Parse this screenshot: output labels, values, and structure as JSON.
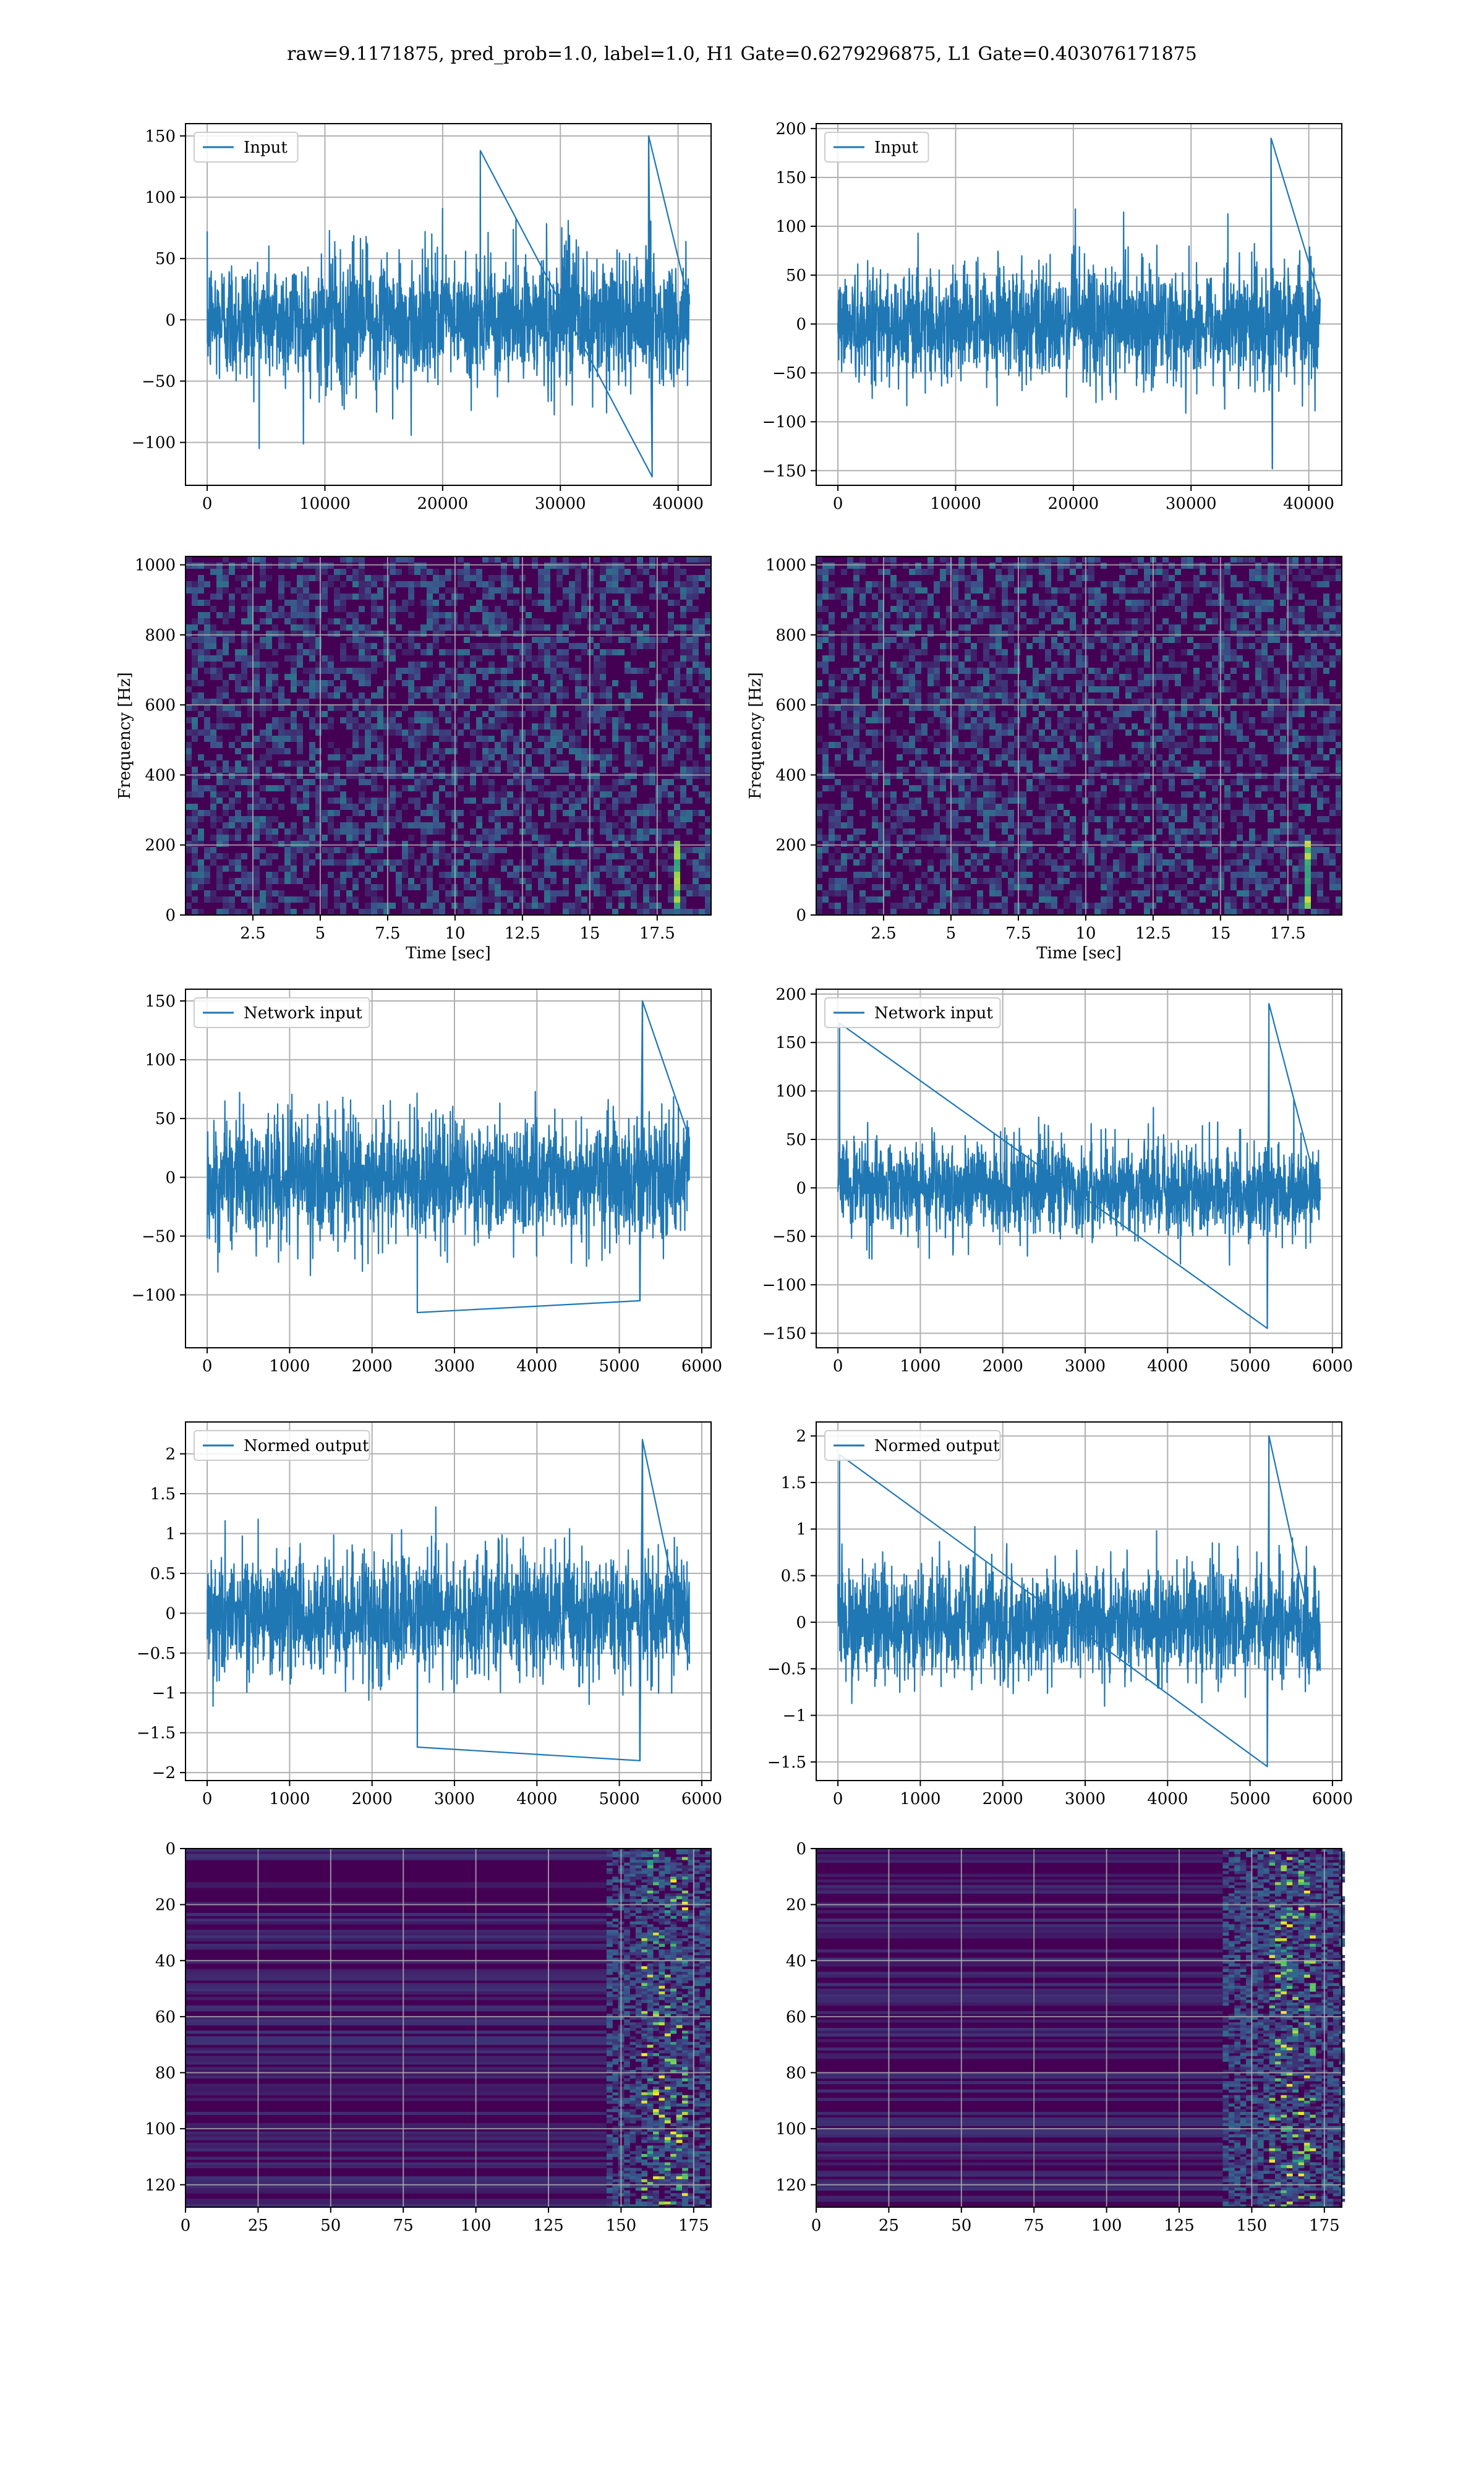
{
  "figure": {
    "title": "raw=9.1171875, pred_prob=1.0, label=1.0, H1 Gate=0.6279296875, L1 Gate=0.403076171875"
  },
  "colors": {
    "line": "#1f77b4",
    "heatmap_bg": "#440154",
    "heatmap_mid": "#3b528b",
    "heatmap_hi": "#21918c",
    "heatmap_peak": "#5ec962",
    "heatmap_max": "#fde725",
    "grid": "#b0b0b0"
  },
  "chart_data": [
    {
      "id": "h1-input",
      "type": "line",
      "legend": "Input",
      "legend_position": "upper-left",
      "x_range": [
        0,
        40960
      ],
      "y_range": [
        -100,
        150
      ],
      "ylim": [
        -135,
        160
      ],
      "xticks": [
        0,
        10000,
        20000,
        30000,
        40000
      ],
      "yticks": [
        -100,
        -50,
        0,
        50,
        100,
        150
      ],
      "noise_std": 26,
      "spikes": [
        {
          "x": 37500,
          "y": 150
        },
        {
          "x": 37800,
          "y": -128
        },
        {
          "x": 23200,
          "y": 138
        }
      ],
      "xlabel": "",
      "ylabel": "",
      "grid": true
    },
    {
      "id": "l1-input",
      "type": "line",
      "legend": "Input",
      "legend_position": "upper-left",
      "x_range": [
        0,
        40960
      ],
      "y_range": [
        -150,
        190
      ],
      "ylim": [
        -165,
        205
      ],
      "xticks": [
        0,
        10000,
        20000,
        30000,
        40000
      ],
      "yticks": [
        -150,
        -100,
        -50,
        0,
        50,
        100,
        150,
        200
      ],
      "noise_std": 30,
      "spikes": [
        {
          "x": 36800,
          "y": 190
        },
        {
          "x": 36900,
          "y": -148
        }
      ],
      "xlabel": "",
      "ylabel": "",
      "grid": true
    },
    {
      "id": "h1-spectrogram",
      "type": "heatmap",
      "xlabel": "Time [sec]",
      "ylabel": "Frequency [Hz]",
      "xlim": [
        0,
        19.5
      ],
      "ylim": [
        0,
        1024
      ],
      "xticks": [
        2.5,
        5.0,
        7.5,
        10.0,
        12.5,
        15.0,
        17.5
      ],
      "yticks": [
        0,
        200,
        400,
        600,
        800,
        1000
      ],
      "chirp_time": 18.1,
      "grid": true
    },
    {
      "id": "l1-spectrogram",
      "type": "heatmap",
      "xlabel": "Time [sec]",
      "ylabel": "Frequency [Hz]",
      "xlim": [
        0,
        19.5
      ],
      "ylim": [
        0,
        1024
      ],
      "xticks": [
        2.5,
        5.0,
        7.5,
        10.0,
        12.5,
        15.0,
        17.5
      ],
      "yticks": [
        0,
        200,
        400,
        600,
        800,
        1000
      ],
      "chirp_time": 18.1,
      "grid": true
    },
    {
      "id": "h1-network-input",
      "type": "line",
      "legend": "Network input",
      "legend_position": "upper-left",
      "x_range": [
        0,
        5850
      ],
      "y_range": [
        -115,
        150
      ],
      "ylim": [
        -145,
        160
      ],
      "xticks": [
        0,
        1000,
        2000,
        3000,
        4000,
        5000,
        6000
      ],
      "yticks": [
        -100,
        -50,
        0,
        50,
        100,
        150
      ],
      "noise_std": 26,
      "spikes": [
        {
          "x": 5280,
          "y": 150
        },
        {
          "x": 5250,
          "y": -105
        },
        {
          "x": 2550,
          "y": -115
        }
      ],
      "xlabel": "",
      "ylabel": "",
      "grid": true
    },
    {
      "id": "l1-network-input",
      "type": "line",
      "legend": "Network input",
      "legend_position": "upper-left",
      "x_range": [
        0,
        5850
      ],
      "y_range": [
        -145,
        190
      ],
      "ylim": [
        -165,
        205
      ],
      "xticks": [
        0,
        1000,
        2000,
        3000,
        4000,
        5000,
        6000
      ],
      "yticks": [
        -150,
        -100,
        -50,
        0,
        50,
        100,
        150,
        200
      ],
      "noise_std": 24,
      "spikes": [
        {
          "x": 5230,
          "y": 190
        },
        {
          "x": 5210,
          "y": -145
        },
        {
          "x": 20,
          "y": 170
        }
      ],
      "xlabel": "",
      "ylabel": "",
      "grid": true
    },
    {
      "id": "h1-normed-output",
      "type": "line",
      "legend": "Normed output",
      "legend_position": "upper-left",
      "x_range": [
        0,
        5850
      ],
      "y_range": [
        -1.85,
        2.2
      ],
      "ylim": [
        -2.1,
        2.4
      ],
      "xticks": [
        0,
        1000,
        2000,
        3000,
        4000,
        5000,
        6000
      ],
      "yticks": [
        -2.0,
        -1.5,
        -1.0,
        -0.5,
        0.0,
        0.5,
        1.0,
        1.5,
        2.0
      ],
      "noise_std": 0.38,
      "spikes": [
        {
          "x": 5280,
          "y": 2.18
        },
        {
          "x": 5250,
          "y": -1.85
        },
        {
          "x": 2550,
          "y": -1.68
        }
      ],
      "xlabel": "",
      "ylabel": "",
      "grid": true
    },
    {
      "id": "l1-normed-output",
      "type": "line",
      "legend": "Normed output",
      "legend_position": "upper-left",
      "x_range": [
        0,
        5850
      ],
      "y_range": [
        -1.55,
        2.0
      ],
      "ylim": [
        -1.7,
        2.15
      ],
      "xticks": [
        0,
        1000,
        2000,
        3000,
        4000,
        5000,
        6000
      ],
      "yticks": [
        -1.5,
        -1.0,
        -0.5,
        0.0,
        0.5,
        1.0,
        1.5,
        2.0
      ],
      "noise_std": 0.3,
      "spikes": [
        {
          "x": 5230,
          "y": 2.0
        },
        {
          "x": 5210,
          "y": -1.55
        },
        {
          "x": 20,
          "y": 1.8
        }
      ],
      "xlabel": "",
      "ylabel": "",
      "grid": true
    },
    {
      "id": "h1-feature-map",
      "type": "heatmap",
      "xlabel": "",
      "ylabel": "",
      "xlim": [
        0,
        181
      ],
      "ylim": [
        0,
        128
      ],
      "y_inverted": true,
      "xticks": [
        0,
        25,
        50,
        75,
        100,
        125,
        150,
        175
      ],
      "yticks": [
        0,
        20,
        40,
        60,
        80,
        100,
        120
      ],
      "active_columns": [
        145,
        181
      ],
      "grid": true
    },
    {
      "id": "l1-feature-map",
      "type": "heatmap",
      "xlabel": "",
      "ylabel": "",
      "xlim": [
        0,
        181
      ],
      "ylim": [
        0,
        128
      ],
      "y_inverted": true,
      "xticks": [
        0,
        25,
        50,
        75,
        100,
        125,
        150,
        175
      ],
      "yticks": [
        0,
        20,
        40,
        60,
        80,
        100,
        120
      ],
      "active_columns": [
        140,
        181
      ],
      "grid": true
    }
  ]
}
